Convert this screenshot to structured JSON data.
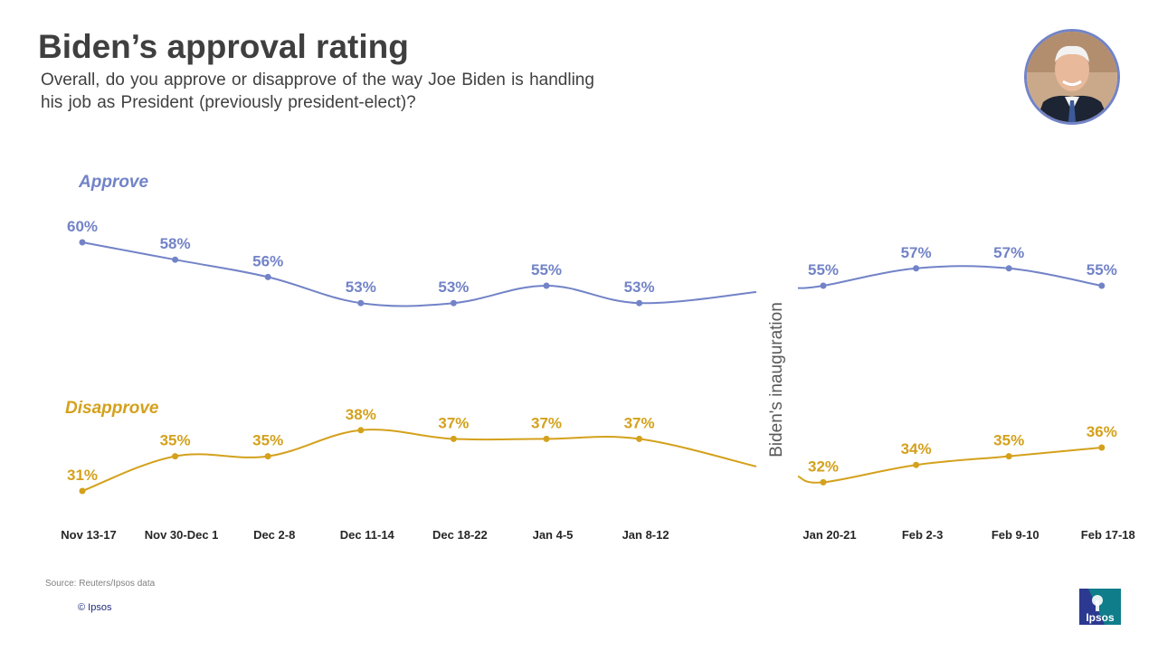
{
  "title": "Biden’s approval rating",
  "subtitle": "Overall, do you approve or disapprove of the way Joe Biden is handling his job as President (previously president-elect)?",
  "source": "Source: Reuters/Ipsos data",
  "copyright": "© Ipsos",
  "logo_text": "Ipsos",
  "colors": {
    "approve": "#7283c7",
    "disapprove": "#d4a11c",
    "title": "#3f3f3f",
    "logo": "#2b3990"
  },
  "chart_data": {
    "type": "line",
    "categories": [
      "Nov 13-17",
      "Nov 30-Dec 1",
      "Dec 2-8",
      "Dec 11-14",
      "Dec 18-22",
      "Jan 4-5",
      "Jan 8-12",
      "Jan 20-21",
      "Feb 2-3",
      "Feb 9-10",
      "Feb 17-18"
    ],
    "series": [
      {
        "name": "Approve",
        "values": [
          60,
          58,
          56,
          53,
          53,
          55,
          53,
          55,
          57,
          57,
          55
        ]
      },
      {
        "name": "Disapprove",
        "values": [
          31,
          35,
          35,
          38,
          37,
          37,
          37,
          32,
          34,
          35,
          36
        ]
      }
    ],
    "value_suffix": "%",
    "annotation": "Biden's inauguration",
    "break_after": "Jan 8-12"
  }
}
